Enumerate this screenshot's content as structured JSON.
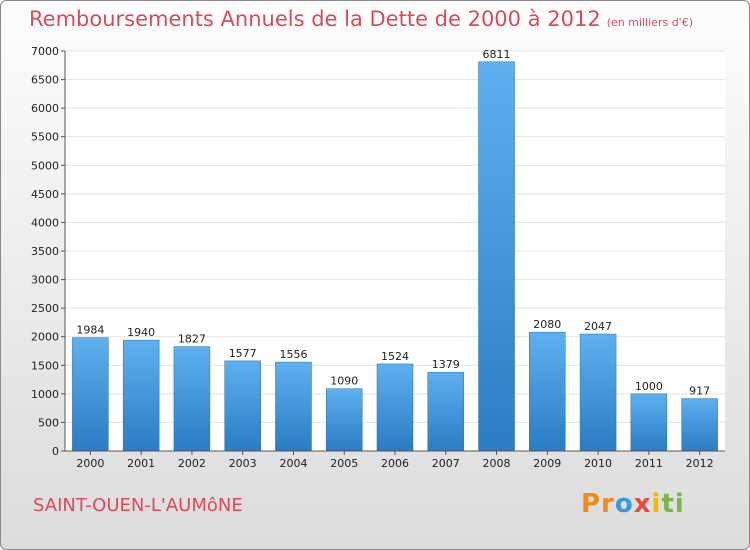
{
  "chart_data": {
    "type": "bar",
    "title": "Remboursements Annuels de la Dette de 2000 à 2012",
    "subtitle": "(en milliers d'€)",
    "categories": [
      "2000",
      "2001",
      "2002",
      "2003",
      "2004",
      "2005",
      "2006",
      "2007",
      "2008",
      "2009",
      "2010",
      "2011",
      "2012"
    ],
    "values": [
      1984,
      1940,
      1827,
      1577,
      1556,
      1090,
      1524,
      1379,
      6811,
      2080,
      2047,
      1000,
      917
    ],
    "ylim": [
      0,
      7000
    ],
    "yticks": [
      0,
      500,
      1000,
      1500,
      2000,
      2500,
      3000,
      3500,
      4000,
      4500,
      5000,
      5500,
      6000,
      6500,
      7000
    ],
    "grid": true,
    "bar_color": "#3a8fd8"
  },
  "footer": {
    "commune": "SAINT-OUEN-L'AUMôNE",
    "logo": [
      "Pr",
      "o",
      "x",
      "i",
      "ti"
    ]
  }
}
